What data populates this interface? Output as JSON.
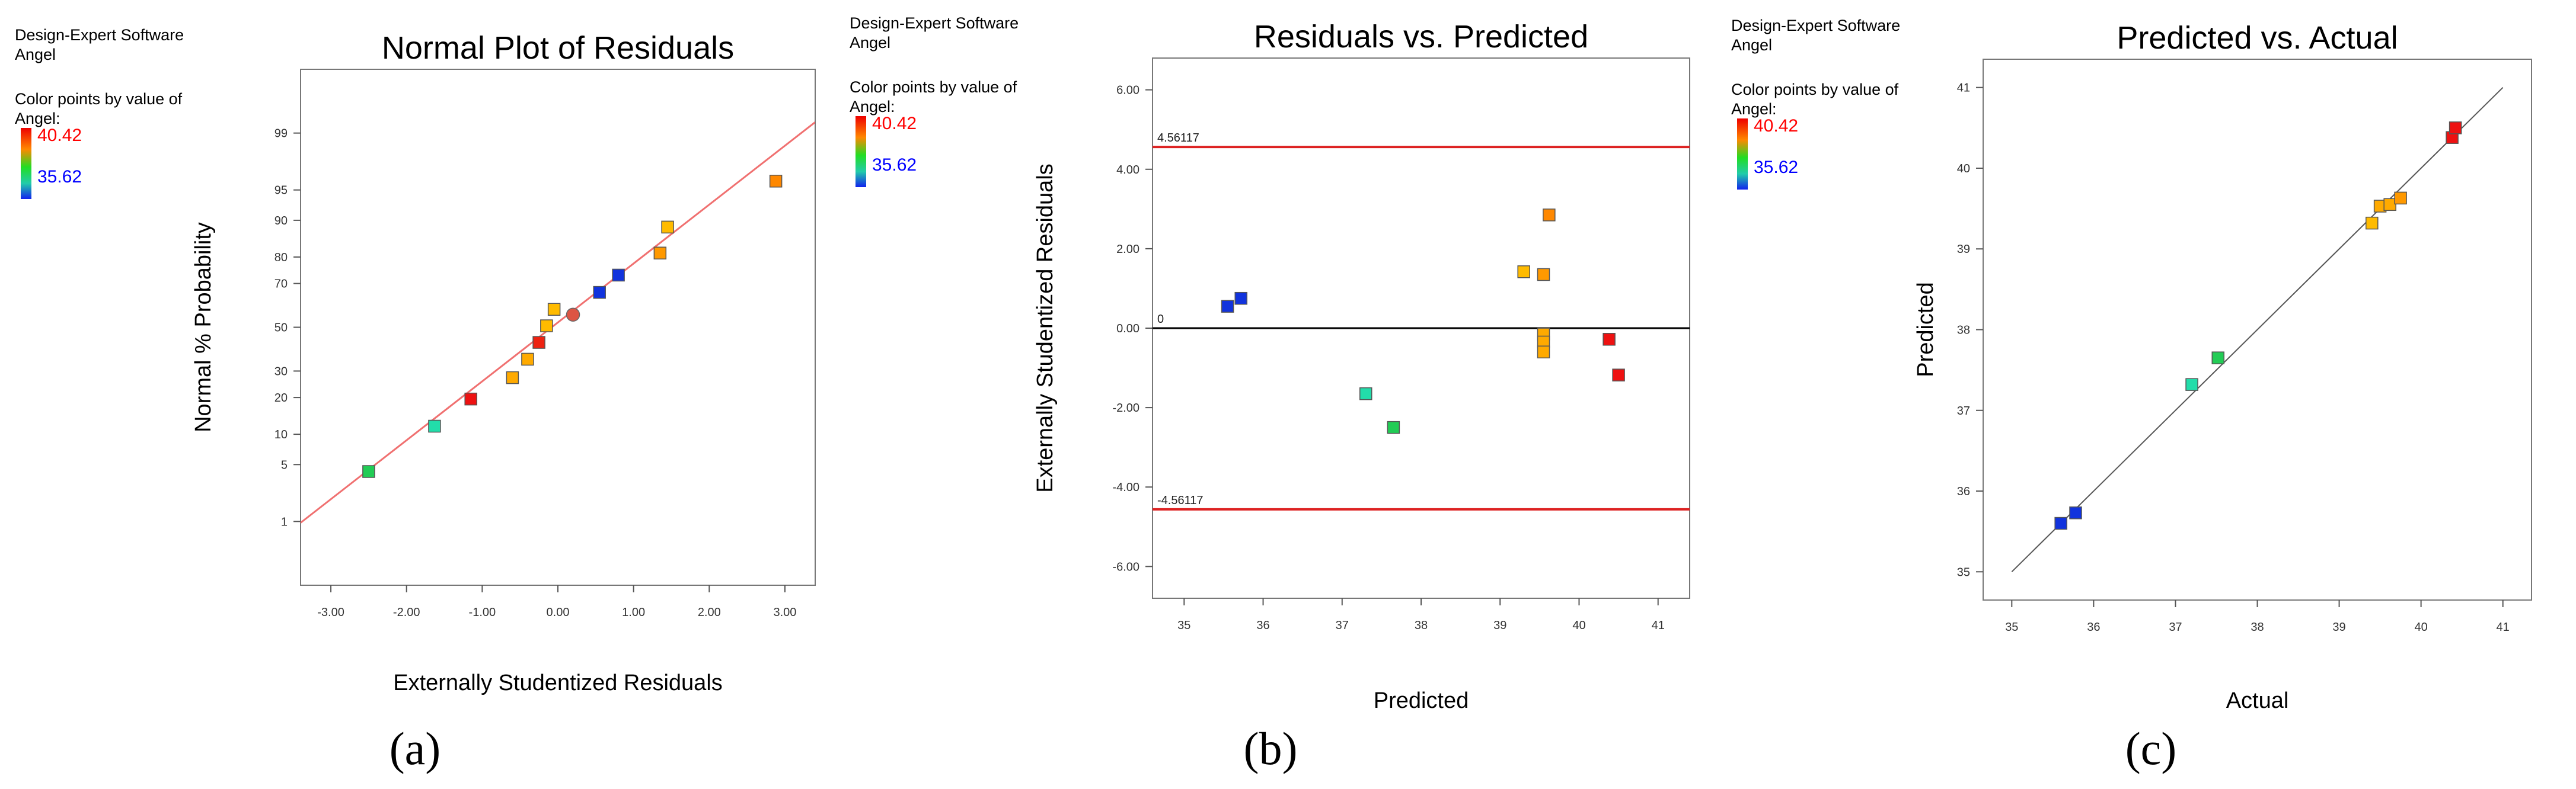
{
  "software_label": "Design-Expert Software",
  "factor_name": "Angel",
  "legend": {
    "caption": "Color points by value of",
    "factor": "Angel:",
    "high": "40.42",
    "low": "35.62",
    "high_color": "#ff0000",
    "low_color": "#0000ff"
  },
  "chart_data": [
    {
      "id": "a",
      "type": "scatter",
      "panel_label": "(a)",
      "title": "Normal Plot of Residuals",
      "xlabel": "Externally Studentized Residuals",
      "ylabel": "Normal % Probability",
      "xlim": [
        -3.4,
        3.4
      ],
      "ylim_percent": [
        0.1,
        99.9
      ],
      "x_ticks": [
        -3,
        -2,
        -1,
        0,
        1,
        2,
        3
      ],
      "x_tick_labels": [
        "-3.00",
        "-2.00",
        "-1.00",
        "0.00",
        "1.00",
        "2.00",
        "3.00"
      ],
      "y_ticks": [
        1,
        5,
        10,
        20,
        30,
        50,
        70,
        80,
        90,
        95,
        99
      ],
      "y_tick_labels": [
        "1",
        "5",
        "10",
        "20",
        "30",
        "50",
        "70",
        "80",
        "90",
        "95",
        "99"
      ],
      "fit_line": {
        "x": [
          -3.4,
          3.4
        ],
        "y_percent": [
          0.96,
          99.3
        ]
      },
      "points": [
        {
          "x": -2.5,
          "y": 4.2,
          "color": "#22cc55",
          "marker": "square"
        },
        {
          "x": -1.63,
          "y": 11.8,
          "color": "#22ddaa",
          "marker": "square"
        },
        {
          "x": -1.15,
          "y": 19.5,
          "color": "#ee1111",
          "marker": "square"
        },
        {
          "x": -0.6,
          "y": 27.3,
          "color": "#ffaa00",
          "marker": "square"
        },
        {
          "x": -0.4,
          "y": 35.1,
          "color": "#ffaa00",
          "marker": "square"
        },
        {
          "x": -0.25,
          "y": 42.8,
          "color": "#ee2211",
          "marker": "square"
        },
        {
          "x": -0.15,
          "y": 50.7,
          "color": "#ffbb00",
          "marker": "square"
        },
        {
          "x": -0.05,
          "y": 58.5,
          "color": "#ffbb00",
          "marker": "square"
        },
        {
          "x": 0.2,
          "y": 56.0,
          "color": "#dd5544",
          "marker": "circle"
        },
        {
          "x": 0.55,
          "y": 66.2,
          "color": "#1133dd",
          "marker": "square"
        },
        {
          "x": 0.8,
          "y": 73.4,
          "color": "#1133dd",
          "marker": "square"
        },
        {
          "x": 1.35,
          "y": 81.3,
          "color": "#ff9900",
          "marker": "square"
        },
        {
          "x": 1.45,
          "y": 88.5,
          "color": "#ffbb00",
          "marker": "square"
        },
        {
          "x": 2.88,
          "y": 96.0,
          "color": "#ff8800",
          "marker": "square"
        }
      ]
    },
    {
      "id": "b",
      "type": "scatter",
      "panel_label": "(b)",
      "title": "Residuals vs. Predicted",
      "xlabel": "Predicted",
      "ylabel": "Externally Studentized Residuals",
      "xlim": [
        34.6,
        41.4
      ],
      "ylim": [
        -6.8,
        6.8
      ],
      "x_ticks": [
        35,
        36,
        37,
        38,
        39,
        40,
        41
      ],
      "x_tick_labels": [
        "35",
        "36",
        "37",
        "38",
        "39",
        "40",
        "41"
      ],
      "y_ticks": [
        -6,
        -4,
        -2,
        0,
        2,
        4,
        6
      ],
      "y_tick_labels": [
        "-6.00",
        "-4.00",
        "-2.00",
        "0.00",
        "2.00",
        "4.00",
        "6.00"
      ],
      "limits": [
        {
          "value": 4.56117,
          "label": "4.56117",
          "color": "#dd2222"
        },
        {
          "value": 0,
          "label": "0",
          "color": "#000000"
        },
        {
          "value": -4.56117,
          "label": "-4.56117",
          "color": "#dd2222"
        }
      ],
      "points": [
        {
          "x": 35.55,
          "y": 0.55,
          "color": "#1133dd",
          "marker": "square"
        },
        {
          "x": 35.72,
          "y": 0.75,
          "color": "#1133dd",
          "marker": "square"
        },
        {
          "x": 37.3,
          "y": -1.65,
          "color": "#22ddaa",
          "marker": "square"
        },
        {
          "x": 37.65,
          "y": -2.5,
          "color": "#22cc55",
          "marker": "square"
        },
        {
          "x": 39.3,
          "y": 1.42,
          "color": "#ffbb00",
          "marker": "square"
        },
        {
          "x": 39.55,
          "y": 1.35,
          "color": "#ff9900",
          "marker": "square"
        },
        {
          "x": 39.62,
          "y": 2.85,
          "color": "#ff8800",
          "marker": "square"
        },
        {
          "x": 39.55,
          "y": -0.15,
          "color": "#ffaa00",
          "marker": "square"
        },
        {
          "x": 39.55,
          "y": -0.35,
          "color": "#ffaa00",
          "marker": "square"
        },
        {
          "x": 39.55,
          "y": -0.6,
          "color": "#ffaa00",
          "marker": "square"
        },
        {
          "x": 40.38,
          "y": -0.28,
          "color": "#ee1111",
          "marker": "square"
        },
        {
          "x": 40.5,
          "y": -1.18,
          "color": "#ee1111",
          "marker": "square"
        }
      ]
    },
    {
      "id": "c",
      "type": "scatter",
      "panel_label": "(c)",
      "title": "Predicted vs. Actual",
      "xlabel": "Actual",
      "ylabel": "Predicted",
      "xlim": [
        34.65,
        41.35
      ],
      "ylim": [
        34.65,
        41.35
      ],
      "x_ticks": [
        35,
        36,
        37,
        38,
        39,
        40,
        41
      ],
      "x_tick_labels": [
        "35",
        "36",
        "37",
        "38",
        "39",
        "40",
        "41"
      ],
      "y_ticks": [
        35,
        36,
        37,
        38,
        39,
        40,
        41
      ],
      "y_tick_labels": [
        "35",
        "36",
        "37",
        "38",
        "39",
        "40",
        "41"
      ],
      "diagonal": {
        "x": [
          35,
          41
        ],
        "y": [
          35,
          41
        ]
      },
      "points": [
        {
          "x": 35.6,
          "y": 35.6,
          "color": "#1133dd",
          "marker": "square"
        },
        {
          "x": 35.78,
          "y": 35.73,
          "color": "#1133dd",
          "marker": "square"
        },
        {
          "x": 37.2,
          "y": 37.32,
          "color": "#22ddaa",
          "marker": "square"
        },
        {
          "x": 37.52,
          "y": 37.65,
          "color": "#22cc55",
          "marker": "square"
        },
        {
          "x": 39.4,
          "y": 39.32,
          "color": "#ffbb00",
          "marker": "square"
        },
        {
          "x": 39.5,
          "y": 39.53,
          "color": "#ffaa00",
          "marker": "square"
        },
        {
          "x": 39.62,
          "y": 39.55,
          "color": "#ffaa00",
          "marker": "square"
        },
        {
          "x": 39.75,
          "y": 39.63,
          "color": "#ff9900",
          "marker": "square"
        },
        {
          "x": 40.38,
          "y": 40.38,
          "color": "#ee1111",
          "marker": "square"
        },
        {
          "x": 40.42,
          "y": 40.5,
          "color": "#ee1111",
          "marker": "square"
        }
      ]
    }
  ]
}
